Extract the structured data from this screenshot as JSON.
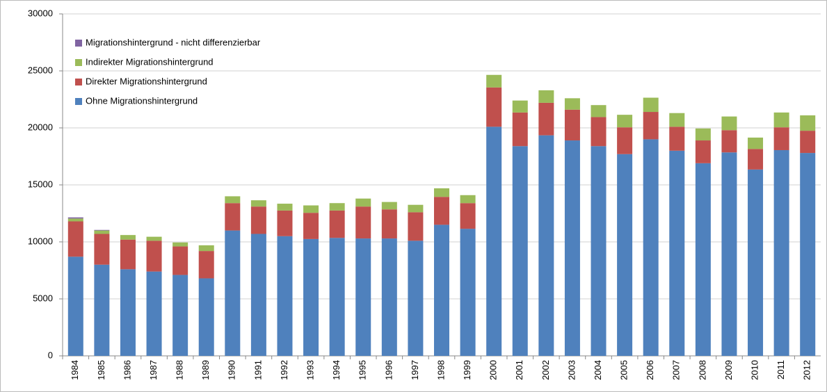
{
  "chart_data": {
    "type": "stacked_bar",
    "categories": [
      "1984",
      "1985",
      "1986",
      "1987",
      "1988",
      "1989",
      "1990",
      "1991",
      "1992",
      "1993",
      "1994",
      "1995",
      "1996",
      "1997",
      "1998",
      "1999",
      "2000",
      "2001",
      "2002",
      "2003",
      "2004",
      "2005",
      "2006",
      "2007",
      "2008",
      "2009",
      "2010",
      "2011",
      "2012"
    ],
    "series": [
      {
        "name": "Ohne Migrationshintergrund",
        "color": "#4f81bd",
        "values": [
          8700,
          8000,
          7600,
          7400,
          7100,
          6800,
          11000,
          10700,
          10500,
          10250,
          10350,
          10300,
          10300,
          10100,
          11500,
          11150,
          20100,
          18400,
          19350,
          18900,
          18400,
          17700,
          19000,
          18000,
          16900,
          17850,
          16350,
          18050,
          17800
        ]
      },
      {
        "name": "Direkter Migrationshintergrund",
        "color": "#c0504d",
        "values": [
          3100,
          2700,
          2600,
          2700,
          2500,
          2400,
          2400,
          2400,
          2250,
          2300,
          2400,
          2800,
          2550,
          2500,
          2450,
          2250,
          3450,
          2950,
          2850,
          2700,
          2550,
          2350,
          2400,
          2100,
          2000,
          1950,
          1800,
          2000,
          1950
        ]
      },
      {
        "name": "Indirekter Migrationshintergrund",
        "color": "#9bbb59",
        "values": [
          250,
          300,
          400,
          350,
          350,
          500,
          600,
          550,
          600,
          650,
          650,
          700,
          650,
          650,
          750,
          700,
          1100,
          1050,
          1100,
          1000,
          1050,
          1100,
          1250,
          1200,
          1050,
          1200,
          1000,
          1300,
          1350
        ]
      },
      {
        "name": "Migrationshintergrund - nicht differenzierbar",
        "color": "#8064a2",
        "values": [
          100,
          50,
          0,
          0,
          0,
          0,
          0,
          0,
          0,
          0,
          0,
          0,
          0,
          0,
          0,
          0,
          0,
          0,
          0,
          0,
          0,
          0,
          0,
          0,
          0,
          0,
          0,
          0,
          0
        ]
      }
    ],
    "ylim": [
      0,
      30000
    ],
    "yticks": [
      0,
      5000,
      10000,
      15000,
      20000,
      25000,
      30000
    ],
    "grid": true
  }
}
